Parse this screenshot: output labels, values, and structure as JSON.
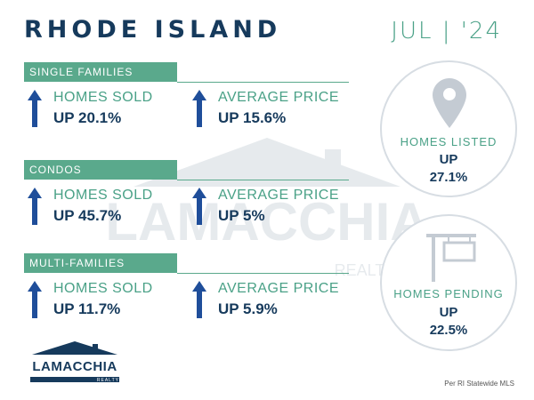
{
  "header": {
    "title": "RHODE ISLAND",
    "date": "JUL | '24"
  },
  "sections": [
    {
      "name": "SINGLE FAMILIES",
      "homes_sold": {
        "label": "HOMES SOLD",
        "value": "UP 20.1%",
        "direction": "up"
      },
      "average_price": {
        "label": "AVERAGE PRICE",
        "value": "UP 15.6%",
        "direction": "up"
      }
    },
    {
      "name": "CONDOS",
      "homes_sold": {
        "label": "HOMES SOLD",
        "value": "UP 45.7%",
        "direction": "up"
      },
      "average_price": {
        "label": "AVERAGE PRICE",
        "value": "UP 5%",
        "direction": "up"
      }
    },
    {
      "name": "MULTI-FAMILIES",
      "homes_sold": {
        "label": "HOMES SOLD",
        "value": "UP 11.7%",
        "direction": "up"
      },
      "average_price": {
        "label": "AVERAGE PRICE",
        "value": "UP 5.9%",
        "direction": "up"
      }
    }
  ],
  "circles": {
    "listed": {
      "label": "HOMES LISTED",
      "direction": "UP",
      "value": "27.1%",
      "icon": "map-pin-icon"
    },
    "pending": {
      "label": "HOMES PENDING",
      "direction": "UP",
      "value": "22.5%",
      "icon": "sale-sign-icon"
    }
  },
  "logo": {
    "name": "LAMACCHIA",
    "sub": "REALTY"
  },
  "source": "Per RI Statewide MLS",
  "colors": {
    "navy": "#163a5c",
    "green": "#5aa98c",
    "arrow": "#1f4e9a",
    "circle_border": "#d7dde3"
  }
}
